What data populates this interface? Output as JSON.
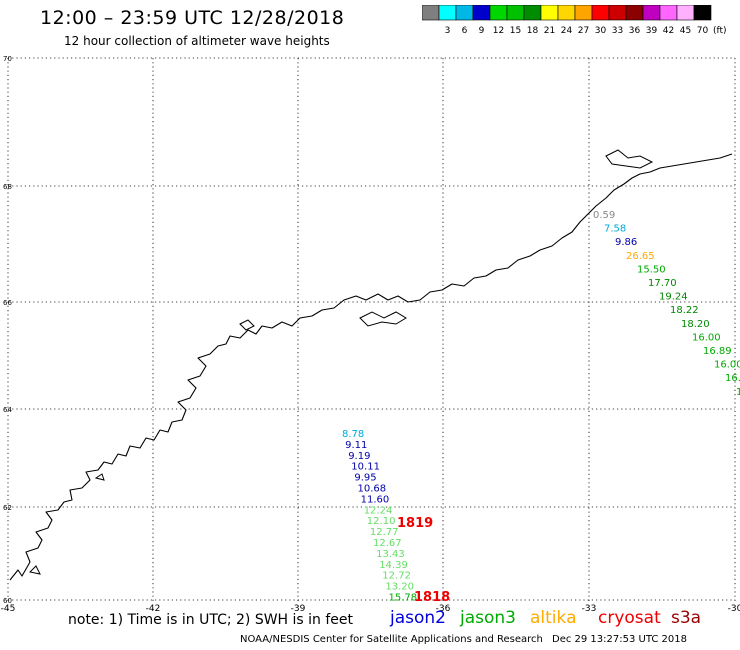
{
  "header": {
    "title": "12:00 – 23:59 UTC 12/28/2018",
    "subtitle": "12 hour collection of altimeter wave heights"
  },
  "color_scale": {
    "unit": "(ft)",
    "bins": [
      {
        "label": "",
        "color": "#7f7f7f"
      },
      {
        "label": "3",
        "color": "#00ffff"
      },
      {
        "label": "6",
        "color": "#00b8e6"
      },
      {
        "label": "9",
        "color": "#0000cc"
      },
      {
        "label": "12",
        "color": "#00d700"
      },
      {
        "label": "15",
        "color": "#00c000"
      },
      {
        "label": "18",
        "color": "#008c00"
      },
      {
        "label": "21",
        "color": "#ffff00"
      },
      {
        "label": "24",
        "color": "#ffd700"
      },
      {
        "label": "27",
        "color": "#ffa500"
      },
      {
        "label": "30",
        "color": "#ff0000"
      },
      {
        "label": "33",
        "color": "#cc0000"
      },
      {
        "label": "36",
        "color": "#8b0000"
      },
      {
        "label": "39",
        "color": "#c000c0"
      },
      {
        "label": "42",
        "color": "#ff66ff"
      },
      {
        "label": "45",
        "color": "#ffb0ff"
      },
      {
        "label": "70",
        "color": "#000000"
      }
    ]
  },
  "axes": {
    "lon_labels": [
      "-45",
      "-42",
      "-39",
      "-36",
      "-33",
      "-30"
    ],
    "lat_labels": [
      "70",
      "68",
      "66",
      "64",
      "62",
      "60"
    ]
  },
  "tracks": [
    {
      "name": "east-track",
      "points": [
        {
          "value": "0.59",
          "color": "#888888"
        },
        {
          "value": "7.58",
          "color": "#00aadd"
        },
        {
          "value": "9.86",
          "color": "#0000aa"
        },
        {
          "value": "26.65",
          "color": "#ffaa00"
        },
        {
          "value": "15.50",
          "color": "#00aa00"
        },
        {
          "value": "17.70",
          "color": "#008800"
        },
        {
          "value": "19.24",
          "color": "#008800"
        },
        {
          "value": "18.22",
          "color": "#008800"
        },
        {
          "value": "18.20",
          "color": "#008800"
        },
        {
          "value": "16.00",
          "color": "#00aa00"
        },
        {
          "value": "16.89",
          "color": "#00aa00"
        },
        {
          "value": "16.00",
          "color": "#00aa00"
        },
        {
          "value": "16.",
          "color": "#00aa00"
        },
        {
          "value": "1",
          "color": "#00aa00"
        }
      ]
    },
    {
      "name": "south-track",
      "points": [
        {
          "value": "8.78",
          "color": "#00aadd"
        },
        {
          "value": "9.11",
          "color": "#0000aa"
        },
        {
          "value": "9.19",
          "color": "#0000aa"
        },
        {
          "value": "10.11",
          "color": "#0000aa"
        },
        {
          "value": "9.95",
          "color": "#0000aa"
        },
        {
          "value": "10.68",
          "color": "#0000aa"
        },
        {
          "value": "11.60",
          "color": "#0000aa"
        },
        {
          "value": "12.24",
          "color": "#66dd66"
        },
        {
          "value": "12.10",
          "color": "#66dd66"
        },
        {
          "value": "12.77",
          "color": "#66dd66"
        },
        {
          "value": "12.67",
          "color": "#66dd66"
        },
        {
          "value": "13.43",
          "color": "#66dd66"
        },
        {
          "value": "14.39",
          "color": "#66dd66"
        },
        {
          "value": "12.72",
          "color": "#66dd66"
        },
        {
          "value": "13.20",
          "color": "#66dd66"
        },
        {
          "value": "15.78",
          "color": "#00aa00"
        }
      ]
    }
  ],
  "time_labels": [
    {
      "text": "1819",
      "color": "#ee0000"
    },
    {
      "text": "1818",
      "color": "#ee0000"
    }
  ],
  "legend": {
    "note": "note: 1) Time is in UTC; 2) SWH is in feet",
    "satellites": [
      {
        "name": "jason2",
        "color": "#0000dd"
      },
      {
        "name": "jason3",
        "color": "#00aa00"
      },
      {
        "name": "altika",
        "color": "#ffaa00"
      },
      {
        "name": "cryosat",
        "color": "#ee0000"
      },
      {
        "name": "s3a",
        "color": "#990000"
      }
    ]
  },
  "footer": {
    "credit": "NOAA/NESDIS Center for Satellite Applications and Research",
    "timestamp": "Dec 29 13:27:53 UTC 2018"
  }
}
